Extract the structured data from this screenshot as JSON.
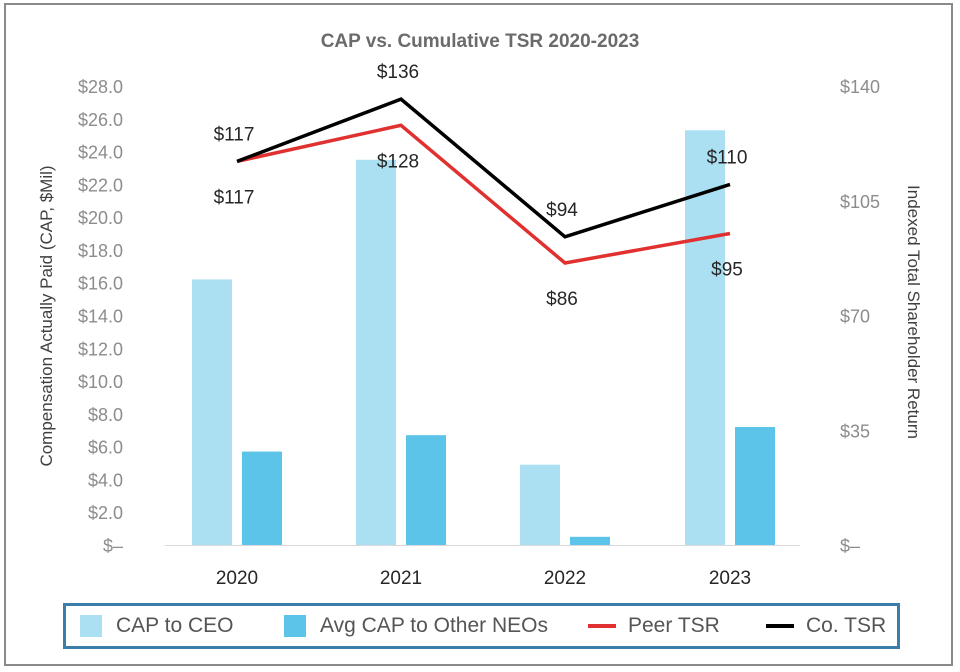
{
  "chart_data": {
    "type": "bar",
    "title": "CAP vs. Cumulative TSR 2020-2023",
    "categories": [
      "2020",
      "2021",
      "2022",
      "2023"
    ],
    "series": [
      {
        "name": "CAP to CEO",
        "kind": "bar",
        "axis": "left",
        "color": "#abe0f2",
        "values": [
          16.2,
          23.5,
          4.9,
          25.3
        ]
      },
      {
        "name": "Avg CAP to Other NEOs",
        "kind": "bar",
        "axis": "left",
        "color": "#5bc4e8",
        "values": [
          5.7,
          6.7,
          0.5,
          7.2
        ]
      },
      {
        "name": "Peer TSR",
        "kind": "line",
        "axis": "right",
        "color": "#e03030",
        "values": [
          117,
          128,
          86,
          95
        ],
        "labels": [
          "$117",
          "$128",
          "$86",
          "$95"
        ]
      },
      {
        "name": "Co. TSR",
        "kind": "line",
        "axis": "right",
        "color": "#000000",
        "values": [
          117,
          136,
          94,
          110
        ],
        "labels": [
          "$117",
          "$136",
          "$94",
          "$110"
        ]
      }
    ],
    "y_left": {
      "label": "Compensation Actually Paid (CAP, $Mil)",
      "range": [
        0,
        28
      ],
      "ticks": [
        "$–",
        "$2.0",
        "$4.0",
        "$6.0",
        "$8.0",
        "$10.0",
        "$12.0",
        "$14.0",
        "$16.0",
        "$18.0",
        "$20.0",
        "$22.0",
        "$24.0",
        "$26.0",
        "$28.0"
      ]
    },
    "y_right": {
      "label": "Indexed Total Shareholder Return",
      "range": [
        0,
        140
      ],
      "ticks": [
        "$–",
        "$35",
        "$70",
        "$105",
        "$140"
      ]
    },
    "legend_position": "bottom",
    "grid": false
  }
}
